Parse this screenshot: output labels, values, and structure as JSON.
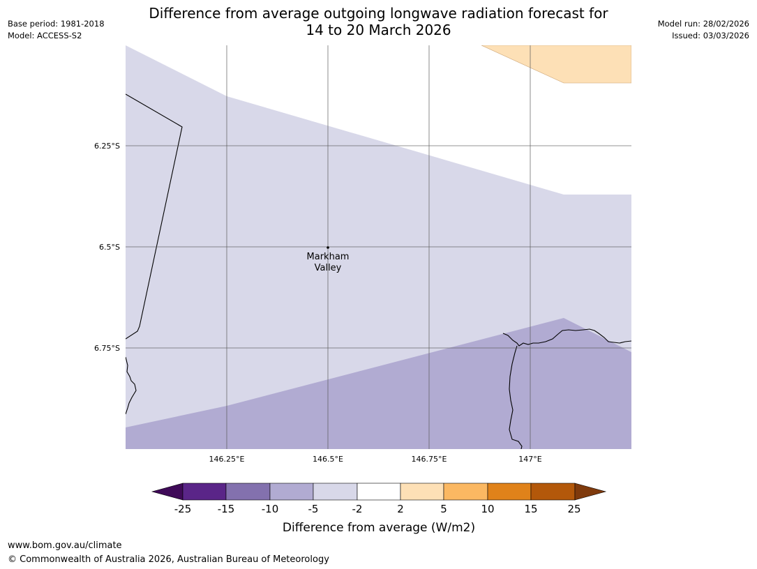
{
  "header": {
    "title_line1": "Difference from average outgoing longwave radiation forecast for",
    "title_line2": "14 to 20 March 2026",
    "base_period": "Base period: 1981-2018",
    "model": "Model: ACCESS-S2",
    "model_run": "Model run: 28/02/2026",
    "issued": "Issued: 03/03/2026"
  },
  "map": {
    "lat_labels": [
      "6.25°S",
      "6.5°S",
      "6.75°S"
    ],
    "lon_labels": [
      "146.25°E",
      "146.5°E",
      "146.75°E",
      "147°E"
    ],
    "place": {
      "name_line1": "Markham",
      "name_line2": "Valley",
      "lon": 146.5,
      "lat": -6.5
    },
    "fill_colors": {
      "light_purple": "#d8d8e9",
      "mid_purple": "#b1abd2",
      "light_orange": "#fde0b6",
      "white": "#ffffff"
    }
  },
  "legend": {
    "tick_labels": [
      "-25",
      "-15",
      "-10",
      "-5",
      "-2",
      "2",
      "5",
      "10",
      "15",
      "25"
    ],
    "colors": [
      "#3f0a58",
      "#5a2588",
      "#8371ae",
      "#b1abd2",
      "#d8d8e9",
      "#ffffff",
      "#fde0b6",
      "#fbb862",
      "#e0821a",
      "#b3580a",
      "#7f3a0c"
    ],
    "label": "Difference from average (W/m2)"
  },
  "footer": {
    "url": "www.bom.gov.au/climate",
    "copyright": "© Commonwealth of Australia 2026, Australian Bureau of Meteorology"
  }
}
